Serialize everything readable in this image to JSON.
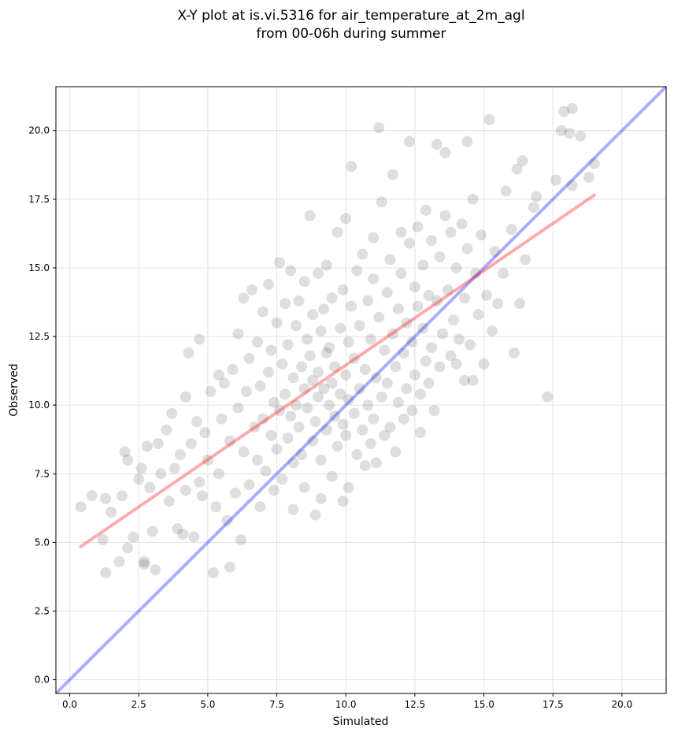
{
  "chart_data": {
    "type": "scatter",
    "title": "X-Y plot at is.vi.5316 for air_temperature_at_2m_agl",
    "subtitle": "from 00-06h during summer",
    "xlabel": "Simulated",
    "ylabel": "Observed",
    "xlim": [
      -0.5,
      21.6
    ],
    "ylim": [
      -0.5,
      21.6
    ],
    "xticks": [
      0.0,
      2.5,
      5.0,
      7.5,
      10.0,
      12.5,
      15.0,
      17.5,
      20.0
    ],
    "yticks": [
      0.0,
      2.5,
      5.0,
      7.5,
      10.0,
      12.5,
      15.0,
      17.5,
      20.0
    ],
    "xtick_labels": [
      "0.0",
      "2.5",
      "5.0",
      "7.5",
      "10.0",
      "12.5",
      "15.0",
      "17.5",
      "20.0"
    ],
    "ytick_labels": [
      "0.0",
      "2.5",
      "5.0",
      "7.5",
      "10.0",
      "12.5",
      "15.0",
      "17.5",
      "20.0"
    ],
    "grid": true,
    "points_color": "#000000",
    "points": [
      [
        0.4,
        6.3
      ],
      [
        0.8,
        6.7
      ],
      [
        1.3,
        3.9
      ],
      [
        1.3,
        6.6
      ],
      [
        1.2,
        5.1
      ],
      [
        1.5,
        6.1
      ],
      [
        1.8,
        4.3
      ],
      [
        1.9,
        6.7
      ],
      [
        2.0,
        8.3
      ],
      [
        2.1,
        8.0
      ],
      [
        2.1,
        4.8
      ],
      [
        2.3,
        5.2
      ],
      [
        2.5,
        7.3
      ],
      [
        2.6,
        7.7
      ],
      [
        2.7,
        4.3
      ],
      [
        2.7,
        4.2
      ],
      [
        2.8,
        8.5
      ],
      [
        2.9,
        7.0
      ],
      [
        3.0,
        5.4
      ],
      [
        3.1,
        4.0
      ],
      [
        3.2,
        8.6
      ],
      [
        3.3,
        7.5
      ],
      [
        3.5,
        9.1
      ],
      [
        3.6,
        6.5
      ],
      [
        3.7,
        9.7
      ],
      [
        3.8,
        7.7
      ],
      [
        3.9,
        5.5
      ],
      [
        4.0,
        8.2
      ],
      [
        4.1,
        5.3
      ],
      [
        4.2,
        6.9
      ],
      [
        4.2,
        10.3
      ],
      [
        4.3,
        11.9
      ],
      [
        4.4,
        8.6
      ],
      [
        4.5,
        5.2
      ],
      [
        4.6,
        9.4
      ],
      [
        4.7,
        7.2
      ],
      [
        4.7,
        12.4
      ],
      [
        4.8,
        6.7
      ],
      [
        4.9,
        9.0
      ],
      [
        5.0,
        8.0
      ],
      [
        5.1,
        10.5
      ],
      [
        5.2,
        3.9
      ],
      [
        5.3,
        6.3
      ],
      [
        5.4,
        7.5
      ],
      [
        5.4,
        11.1
      ],
      [
        5.5,
        9.5
      ],
      [
        5.6,
        10.8
      ],
      [
        5.7,
        5.8
      ],
      [
        5.8,
        8.7
      ],
      [
        5.8,
        4.1
      ],
      [
        5.9,
        11.3
      ],
      [
        6.0,
        6.8
      ],
      [
        6.1,
        9.9
      ],
      [
        6.1,
        12.6
      ],
      [
        6.2,
        5.1
      ],
      [
        6.3,
        8.3
      ],
      [
        6.3,
        13.9
      ],
      [
        6.4,
        10.5
      ],
      [
        6.5,
        7.1
      ],
      [
        6.5,
        11.7
      ],
      [
        6.6,
        14.2
      ],
      [
        6.7,
        9.2
      ],
      [
        6.8,
        8.0
      ],
      [
        6.8,
        12.3
      ],
      [
        6.9,
        6.3
      ],
      [
        6.9,
        10.7
      ],
      [
        7.0,
        13.4
      ],
      [
        7.0,
        9.5
      ],
      [
        7.1,
        7.6
      ],
      [
        7.2,
        11.2
      ],
      [
        7.2,
        14.4
      ],
      [
        7.3,
        8.9
      ],
      [
        7.3,
        12.0
      ],
      [
        7.4,
        6.9
      ],
      [
        7.4,
        10.1
      ],
      [
        7.5,
        13.0
      ],
      [
        7.5,
        8.4
      ],
      [
        7.6,
        15.2
      ],
      [
        7.6,
        9.8
      ],
      [
        7.7,
        11.5
      ],
      [
        7.7,
        7.3
      ],
      [
        7.8,
        10.4
      ],
      [
        7.8,
        13.7
      ],
      [
        7.9,
        8.8
      ],
      [
        7.9,
        12.2
      ],
      [
        8.0,
        9.6
      ],
      [
        8.0,
        14.9
      ],
      [
        8.1,
        7.9
      ],
      [
        8.1,
        11.0
      ],
      [
        8.1,
        6.2
      ],
      [
        8.2,
        10.0
      ],
      [
        8.2,
        12.9
      ],
      [
        8.3,
        9.2
      ],
      [
        8.3,
        13.8
      ],
      [
        8.4,
        11.4
      ],
      [
        8.4,
        8.2
      ],
      [
        8.5,
        10.6
      ],
      [
        8.5,
        14.5
      ],
      [
        8.5,
        7.0
      ],
      [
        8.6,
        12.4
      ],
      [
        8.6,
        9.9
      ],
      [
        8.7,
        11.8
      ],
      [
        8.7,
        16.9
      ],
      [
        8.8,
        8.7
      ],
      [
        8.8,
        10.9
      ],
      [
        8.8,
        13.3
      ],
      [
        8.9,
        6.0
      ],
      [
        8.9,
        9.4
      ],
      [
        9.0,
        11.2
      ],
      [
        9.0,
        14.8
      ],
      [
        9.0,
        10.3
      ],
      [
        9.1,
        12.7
      ],
      [
        9.1,
        8.0
      ],
      [
        9.1,
        6.6
      ],
      [
        9.2,
        10.6
      ],
      [
        9.2,
        13.5
      ],
      [
        9.3,
        9.1
      ],
      [
        9.3,
        11.9
      ],
      [
        9.3,
        15.1
      ],
      [
        9.4,
        10.0
      ],
      [
        9.4,
        12.1
      ],
      [
        9.5,
        7.4
      ],
      [
        9.5,
        10.8
      ],
      [
        9.5,
        13.9
      ],
      [
        9.6,
        9.6
      ],
      [
        9.6,
        11.4
      ],
      [
        9.7,
        16.3
      ],
      [
        9.7,
        8.5
      ],
      [
        9.8,
        10.4
      ],
      [
        9.8,
        12.8
      ],
      [
        9.9,
        9.3
      ],
      [
        9.9,
        14.2
      ],
      [
        9.9,
        6.5
      ],
      [
        10.0,
        11.1
      ],
      [
        10.0,
        16.8
      ],
      [
        10.0,
        8.9
      ],
      [
        10.1,
        12.3
      ],
      [
        10.1,
        10.2
      ],
      [
        10.1,
        7.0
      ],
      [
        10.2,
        13.6
      ],
      [
        10.2,
        18.7
      ],
      [
        10.3,
        9.7
      ],
      [
        10.3,
        11.7
      ],
      [
        10.4,
        14.9
      ],
      [
        10.4,
        8.2
      ],
      [
        10.5,
        10.6
      ],
      [
        10.5,
        12.9
      ],
      [
        10.6,
        9.1
      ],
      [
        10.6,
        15.5
      ],
      [
        10.7,
        11.3
      ],
      [
        10.7,
        7.8
      ],
      [
        10.8,
        13.8
      ],
      [
        10.8,
        10.0
      ],
      [
        10.9,
        8.6
      ],
      [
        10.9,
        12.4
      ],
      [
        11.0,
        14.6
      ],
      [
        11.0,
        9.5
      ],
      [
        11.0,
        16.1
      ],
      [
        11.1,
        11.0
      ],
      [
        11.1,
        7.9
      ],
      [
        11.2,
        20.1
      ],
      [
        11.2,
        13.2
      ],
      [
        11.3,
        10.3
      ],
      [
        11.3,
        17.4
      ],
      [
        11.4,
        12.0
      ],
      [
        11.4,
        8.9
      ],
      [
        11.5,
        14.1
      ],
      [
        11.5,
        10.8
      ],
      [
        11.6,
        15.3
      ],
      [
        11.6,
        9.2
      ],
      [
        11.7,
        18.4
      ],
      [
        11.7,
        12.6
      ],
      [
        11.8,
        11.4
      ],
      [
        11.8,
        8.3
      ],
      [
        11.9,
        13.5
      ],
      [
        11.9,
        10.1
      ],
      [
        12.0,
        16.3
      ],
      [
        12.0,
        14.8
      ],
      [
        12.1,
        9.5
      ],
      [
        12.1,
        11.9
      ],
      [
        12.2,
        13.0
      ],
      [
        12.2,
        10.6
      ],
      [
        12.3,
        19.6
      ],
      [
        12.3,
        15.9
      ],
      [
        12.4,
        12.3
      ],
      [
        12.4,
        9.8
      ],
      [
        12.5,
        14.3
      ],
      [
        12.5,
        11.1
      ],
      [
        12.6,
        16.5
      ],
      [
        12.6,
        13.6
      ],
      [
        12.7,
        10.4
      ],
      [
        12.7,
        9.0
      ],
      [
        12.8,
        15.1
      ],
      [
        12.8,
        12.8
      ],
      [
        12.9,
        17.1
      ],
      [
        12.9,
        11.6
      ],
      [
        13.0,
        14.0
      ],
      [
        13.0,
        10.8
      ],
      [
        13.1,
        16.0
      ],
      [
        13.1,
        12.1
      ],
      [
        13.2,
        9.8
      ],
      [
        13.3,
        19.5
      ],
      [
        13.3,
        13.8
      ],
      [
        13.4,
        11.4
      ],
      [
        13.4,
        15.4
      ],
      [
        13.5,
        12.6
      ],
      [
        13.6,
        16.9
      ],
      [
        13.6,
        19.2
      ],
      [
        13.7,
        14.2
      ],
      [
        13.8,
        11.8
      ],
      [
        13.8,
        16.3
      ],
      [
        13.9,
        13.1
      ],
      [
        14.0,
        11.5
      ],
      [
        14.0,
        15.0
      ],
      [
        14.1,
        12.4
      ],
      [
        14.2,
        16.6
      ],
      [
        14.3,
        13.9
      ],
      [
        14.3,
        10.9
      ],
      [
        14.4,
        19.6
      ],
      [
        14.4,
        15.7
      ],
      [
        14.5,
        12.2
      ],
      [
        14.6,
        17.5
      ],
      [
        14.6,
        10.9
      ],
      [
        14.7,
        14.8
      ],
      [
        14.8,
        13.3
      ],
      [
        14.9,
        16.2
      ],
      [
        15.0,
        11.5
      ],
      [
        15.1,
        14.0
      ],
      [
        15.2,
        20.4
      ],
      [
        15.3,
        12.7
      ],
      [
        15.4,
        15.6
      ],
      [
        15.5,
        13.7
      ],
      [
        15.7,
        14.8
      ],
      [
        15.8,
        17.8
      ],
      [
        16.0,
        16.4
      ],
      [
        16.1,
        11.9
      ],
      [
        16.2,
        18.6
      ],
      [
        16.3,
        13.7
      ],
      [
        16.4,
        18.9
      ],
      [
        16.5,
        15.3
      ],
      [
        16.8,
        17.2
      ],
      [
        16.9,
        17.6
      ],
      [
        17.3,
        10.3
      ],
      [
        17.6,
        18.2
      ],
      [
        17.8,
        20.0
      ],
      [
        17.9,
        20.7
      ],
      [
        18.1,
        19.9
      ],
      [
        18.2,
        20.8
      ],
      [
        18.5,
        19.8
      ],
      [
        18.8,
        18.3
      ],
      [
        19.0,
        18.8
      ],
      [
        18.2,
        18.0
      ]
    ],
    "one_to_one_line": {
      "color": "#0000ff",
      "x": [
        -0.5,
        21.6
      ],
      "y": [
        -0.5,
        21.6
      ]
    },
    "fit_line": {
      "color": "#ff0000",
      "x": [
        0.4,
        19.0
      ],
      "y": [
        4.85,
        17.65
      ]
    }
  }
}
